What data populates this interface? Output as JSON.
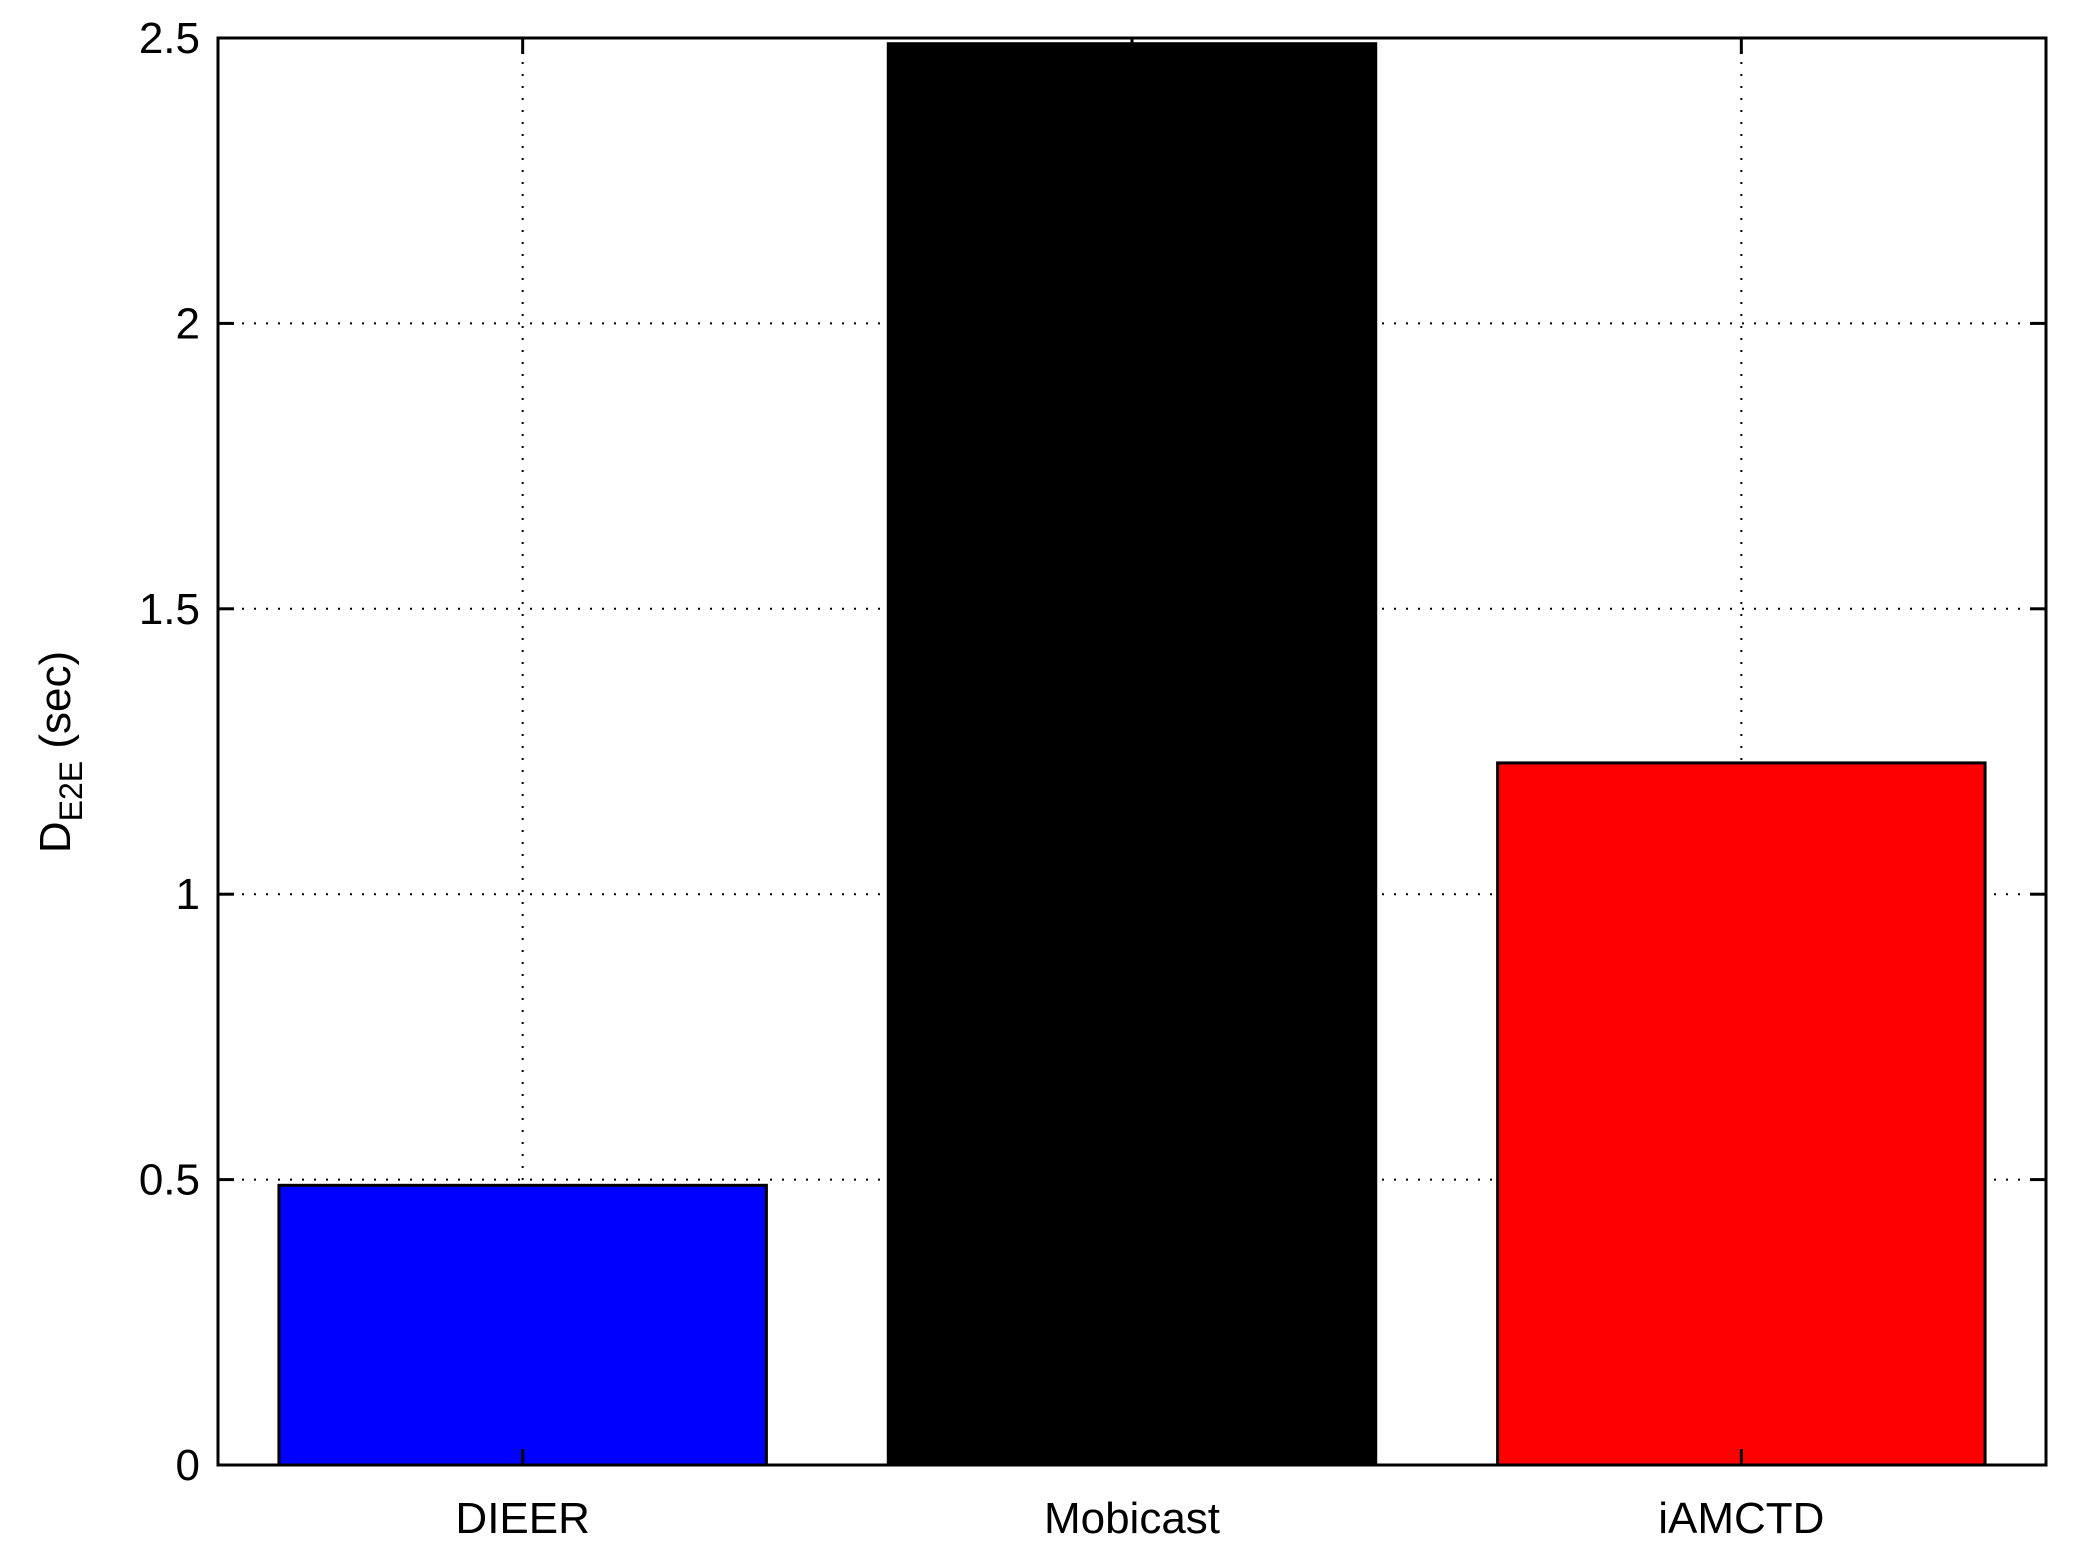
{
  "chart_data": {
    "type": "bar",
    "categories": [
      "DIEER",
      "Mobicast",
      "iAMCTD"
    ],
    "values": [
      0.49,
      2.49,
      1.23
    ],
    "colors": [
      "#0000ff",
      "#000000",
      "#ff0000"
    ],
    "title": "",
    "xlabel": "",
    "ylabel": {
      "main": "D",
      "subscript": "E2E",
      "suffix": " (sec)"
    },
    "ylim": [
      0,
      2.5
    ],
    "yticks": [
      0,
      0.5,
      1,
      1.5,
      2,
      2.5
    ],
    "ytick_labels": [
      "0",
      "0.5",
      "1",
      "1.5",
      "2",
      "2.5"
    ],
    "grid": true,
    "grid_style": "dotted"
  }
}
